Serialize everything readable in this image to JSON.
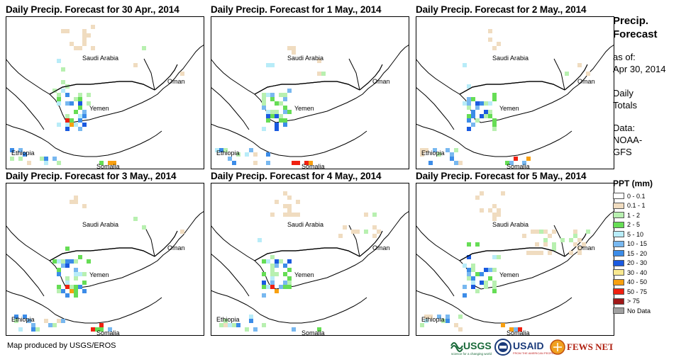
{
  "panels": [
    {
      "title": "Daily Precip. Forecast for 30 Apr., 2014",
      "seed": 1
    },
    {
      "title": "Daily Precip. Forecast for 1 May., 2014",
      "seed": 2
    },
    {
      "title": "Daily Precip. Forecast for 2 May., 2014",
      "seed": 3
    },
    {
      "title": "Daily Precip. Forecast for 3 May., 2014",
      "seed": 4
    },
    {
      "title": "Daily Precip. Forecast for 4 May., 2014",
      "seed": 5
    },
    {
      "title": "Daily Precip. Forecast for 5 May., 2014",
      "seed": 6
    }
  ],
  "map_labels": {
    "saudi": "Saudi Arabia",
    "oman": "Oman",
    "yemen": "Yemen",
    "ethiopia": "Ethiopia",
    "somalia": "Somalia"
  },
  "sidebar": {
    "title_line1": "Precip.",
    "title_line2": "Forecast",
    "asof_line1": "as of:",
    "asof_line2": "Apr 30, 2014",
    "daily_line1": "Daily",
    "daily_line2": "Totals",
    "data_line1": "Data:",
    "data_line2": "NOAA-",
    "data_line3": "GFS"
  },
  "legend": {
    "title": "PPT (mm)",
    "items": [
      {
        "label": "0 - 0.1",
        "color": "#ffffff"
      },
      {
        "label": "0.1 - 1",
        "color": "#f0dcc0"
      },
      {
        "label": "1 - 2",
        "color": "#b8f0b0"
      },
      {
        "label": "2 - 5",
        "color": "#66dd55"
      },
      {
        "label": "5 - 10",
        "color": "#b8ecf8"
      },
      {
        "label": "10 - 15",
        "color": "#78b8f0"
      },
      {
        "label": "15 - 20",
        "color": "#3c8ce8"
      },
      {
        "label": "20 - 30",
        "color": "#1a5ae0"
      },
      {
        "label": "30 - 40",
        "color": "#f8e890"
      },
      {
        "label": "40 - 50",
        "color": "#f8a010"
      },
      {
        "label": "50 - 75",
        "color": "#f02010"
      },
      {
        "label": "> 75",
        "color": "#a01818"
      },
      {
        "label": "No Data",
        "color": "#a0a0a0"
      }
    ]
  },
  "footer": {
    "credit": "Map produced by USGS/EROS"
  },
  "logos": {
    "usgs": "USGS",
    "usgs_tag": "science for a changing world",
    "usaid": "USAID",
    "usaid_tag": "FROM THE AMERICAN PEOPLE",
    "fews": "FEWS NET"
  }
}
